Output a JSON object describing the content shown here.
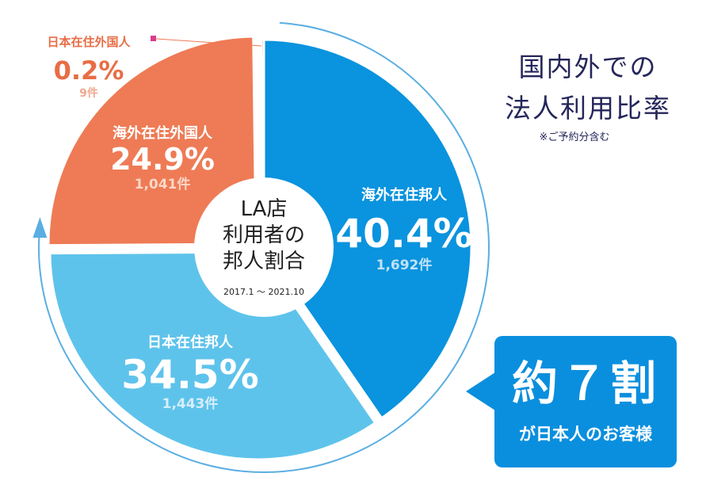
{
  "title_lines": [
    "国内外での",
    "法人利用比率"
  ],
  "title_note": "※ご予約分含む",
  "center": {
    "lines": [
      "LA店",
      "利用者の",
      "邦人割合"
    ],
    "period": "2017.1 〜 2021.10"
  },
  "callout": {
    "main": "約７割",
    "sub": "が日本人のお客様"
  },
  "colors": {
    "overseas_japanese": "#0a93de",
    "japan_japanese": "#5ec3eb",
    "overseas_foreign": "#ee7b55",
    "japan_foreign": "#d83d8a",
    "arrow_line": "#5aaee2"
  },
  "chart_data": {
    "type": "pie",
    "series": [
      {
        "name": "海外在住邦人",
        "percent_label": "40.4%",
        "value": 40.4,
        "count": "1,692件"
      },
      {
        "name": "日本在住邦人",
        "percent_label": "34.5%",
        "value": 34.5,
        "count": "1,443件"
      },
      {
        "name": "海外在住外国人",
        "percent_label": "24.9%",
        "value": 24.9,
        "count": "1,041件"
      },
      {
        "name": "日本在住外国人",
        "percent_label": "0.2%",
        "value": 0.2,
        "count": "9件"
      }
    ]
  }
}
